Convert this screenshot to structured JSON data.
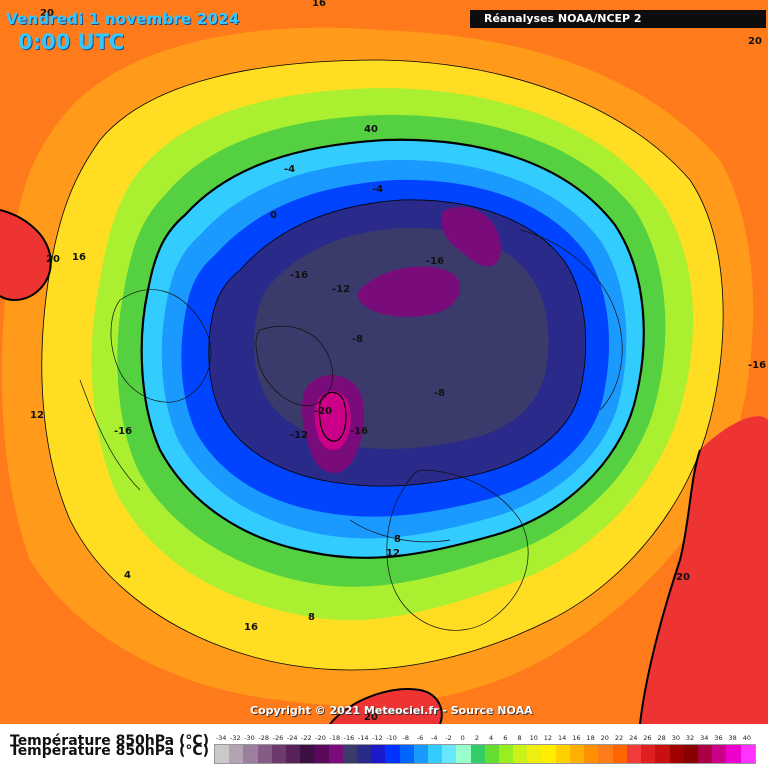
{
  "header": {
    "date_label": "Vendredi 1 novembre 2024",
    "time_label": "0:00 UTC",
    "source_label": "Réanalyses NOAA/NCEP 2"
  },
  "footer": {
    "copyright": "Copyright © 2021 Meteociel.fr - Source NOAA",
    "parameter_label": "Température 850hPa (°C)"
  },
  "contour_labels": [
    "20",
    "16",
    "20",
    "20",
    "16",
    "40",
    "-4",
    "-4",
    "0",
    "-16",
    "-12",
    "-16",
    "-8",
    "-8",
    "-20",
    "-12",
    "-16",
    "-16",
    "12",
    "-16",
    "8",
    "12",
    "4",
    "8",
    "16",
    "20",
    "20"
  ],
  "legend": {
    "values": [
      "-34",
      "-32",
      "-30",
      "-28",
      "-26",
      "-24",
      "-22",
      "-20",
      "-18",
      "-16",
      "-14",
      "-12",
      "-10",
      "-8",
      "-6",
      "-4",
      "-2",
      "0",
      "2",
      "4",
      "6",
      "8",
      "10",
      "12",
      "14",
      "16",
      "18",
      "20",
      "22",
      "24",
      "26",
      "28",
      "30",
      "32",
      "34",
      "36",
      "38",
      "40"
    ],
    "colors": [
      "#c9c9c9",
      "#b3a3b3",
      "#9c7f9c",
      "#855c85",
      "#6e3a6e",
      "#57225a",
      "#3c1040",
      "#5a0a5a",
      "#7a0b7a",
      "#3b3b6b",
      "#2a2a8a",
      "#1a1acc",
      "#0033ff",
      "#0066ff",
      "#1a99ff",
      "#33ccff",
      "#66e6ff",
      "#99ffcc",
      "#33cc66",
      "#66dd33",
      "#99ee22",
      "#ccf01a",
      "#eeee11",
      "#ffee00",
      "#ffd000",
      "#ffb000",
      "#ff9000",
      "#ff7a1a",
      "#ff6600",
      "#f23c3c",
      "#e02020",
      "#c81010",
      "#a00000",
      "#880000",
      "#aa0044",
      "#cc0088",
      "#ee00cc",
      "#ff33ff"
    ]
  },
  "map": {
    "projection": "polar-stereographic",
    "region": "Northern Hemisphere",
    "palette": {
      "warm_far": "#ff7a1a",
      "orange": "#ff9a1a",
      "yellow": "#ffdd22",
      "green_light": "#aaf030",
      "green": "#55d040",
      "cyan": "#33ccff",
      "blue_light": "#1a99ff",
      "blue": "#0044ff",
      "navy": "#2a2a8a",
      "slate": "#3b3b6b",
      "purple": "#7a0b7a",
      "magenta": "#cc0088",
      "red": "#ee3333"
    }
  }
}
